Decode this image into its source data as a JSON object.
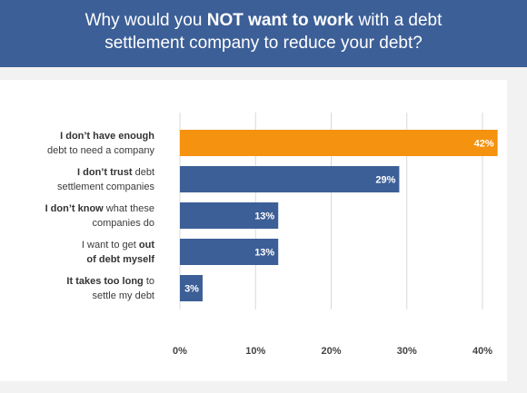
{
  "header": {
    "title_part1": "Why would you ",
    "title_emphasis": "NOT want to work",
    "title_part2": " with a debt",
    "title_line2": "settlement company to reduce your debt?"
  },
  "colors": {
    "header_bg": "#3d5f97",
    "bar_primary": "#3d5f97",
    "bar_highlight": "#f5920f",
    "gridline": "#d9d9d9"
  },
  "chart_data": {
    "type": "bar",
    "orientation": "horizontal",
    "title": "Why would you NOT want to work with a debt settlement company to reduce your debt?",
    "categories": [
      {
        "lines": [
          {
            "bold": "I don’t have enough",
            "plain": ""
          },
          {
            "bold": "",
            "plain": "debt to need a company"
          }
        ]
      },
      {
        "lines": [
          {
            "bold": "I don’t trust",
            "plain": " debt"
          },
          {
            "bold": "",
            "plain": "settlement companies"
          }
        ]
      },
      {
        "lines": [
          {
            "bold": "I don’t know",
            "plain": " what these"
          },
          {
            "bold": "",
            "plain": "companies do"
          }
        ]
      },
      {
        "lines": [
          {
            "plain": "I want to get ",
            "bold": "out"
          },
          {
            "bold": "of debt myself",
            "plain": ""
          }
        ]
      },
      {
        "lines": [
          {
            "bold": "It takes too long",
            "plain": " to"
          },
          {
            "bold": "",
            "plain": "settle my debt"
          }
        ]
      }
    ],
    "values": [
      42,
      29,
      13,
      13,
      3
    ],
    "value_labels": [
      "42%",
      "29%",
      "13%",
      "13%",
      "3%"
    ],
    "highlight_index": 0,
    "xlim": [
      0,
      40
    ],
    "xticks": [
      "0%",
      "10%",
      "20%",
      "30%",
      "40%"
    ],
    "grid": true,
    "legend": "none"
  }
}
